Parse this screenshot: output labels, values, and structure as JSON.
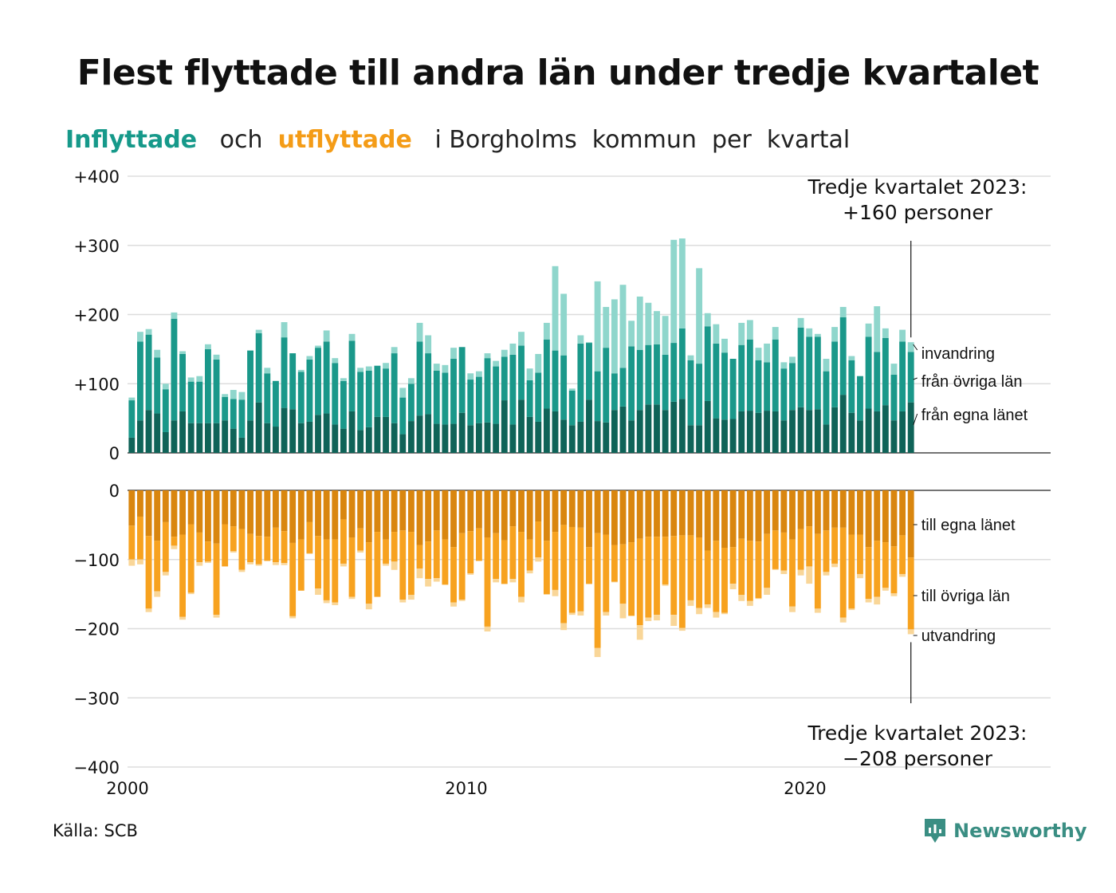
{
  "title": "Flest flyttade till andra län under tredje kvartalet",
  "subtitle": {
    "in_word": "Inflyttade",
    "and_word": "och",
    "out_word": "utflyttade",
    "rest": "i Borgholms  kommun  per  kvartal"
  },
  "source": "Källa: SCB",
  "brand": "Newsworthy",
  "colors": {
    "in_own": "#0f6358",
    "in_other": "#1a988a",
    "in_immigration": "#8fd6cc",
    "out_own": "#d9860f",
    "out_other": "#f7a21f",
    "out_emigration": "#f9d698",
    "brand": "#3a8e83"
  },
  "chart_data": {
    "type": "bar",
    "stacked": true,
    "x_start": 2000,
    "x_step": 0.25,
    "xlim": [
      2000,
      2027.25
    ],
    "x_ticks": [
      "2000",
      "2010",
      "2020"
    ],
    "y_ticks_top": [
      "+400",
      "+300",
      "+200",
      "+100",
      "0"
    ],
    "y_ticks_bottom": [
      "0",
      "−100",
      "−200",
      "−300",
      "−400"
    ],
    "ylim_top": [
      0,
      400
    ],
    "ylim_bottom": [
      -400,
      0
    ],
    "inflow": {
      "own_county": [
        22,
        47,
        62,
        57,
        30,
        47,
        60,
        43,
        43,
        43,
        43,
        47,
        35,
        22,
        47,
        73,
        43,
        38,
        65,
        63,
        43,
        45,
        55,
        57,
        41,
        35,
        60,
        33,
        37,
        52,
        52,
        43,
        27,
        46,
        54,
        56,
        42,
        41,
        42,
        58,
        40,
        43,
        44,
        42,
        76,
        41,
        77,
        52,
        45,
        64,
        60,
        48,
        40,
        45,
        77,
        46,
        44,
        62,
        67,
        47,
        62,
        70,
        70,
        62,
        74,
        78,
        40,
        40,
        75,
        50,
        48,
        49,
        60,
        61,
        58,
        61,
        60,
        47,
        62,
        66,
        62,
        63,
        41,
        66,
        84,
        58,
        47,
        64,
        60,
        69,
        47,
        60,
        73
      ],
      "from_other_counties": [
        54,
        114,
        109,
        81,
        62,
        147,
        83,
        60,
        60,
        107,
        92,
        34,
        43,
        55,
        101,
        100,
        72,
        66,
        102,
        81,
        74,
        90,
        97,
        104,
        89,
        69,
        102,
        84,
        82,
        74,
        70,
        101,
        53,
        54,
        107,
        88,
        77,
        75,
        94,
        95,
        66,
        67,
        93,
        83,
        63,
        101,
        78,
        53,
        71,
        100,
        88,
        93,
        50,
        113,
        82,
        72,
        108,
        53,
        56,
        107,
        87,
        86,
        87,
        80,
        85,
        102,
        94,
        89,
        108,
        108,
        97,
        87,
        96,
        103,
        76,
        70,
        104,
        75,
        68,
        115,
        106,
        105,
        77,
        95,
        112,
        76,
        64,
        104,
        86,
        97,
        66,
        101,
        73
      ],
      "immigration": [
        4,
        14,
        8,
        11,
        8,
        9,
        4,
        6,
        8,
        7,
        7,
        4,
        13,
        11,
        0,
        5,
        8,
        0,
        22,
        0,
        3,
        5,
        3,
        16,
        7,
        4,
        10,
        6,
        6,
        0,
        8,
        9,
        14,
        8,
        27,
        26,
        10,
        11,
        16,
        0,
        9,
        8,
        7,
        8,
        10,
        16,
        20,
        17,
        27,
        24,
        122,
        89,
        3,
        12,
        1,
        130,
        59,
        107,
        120,
        37,
        77,
        61,
        48,
        56,
        149,
        130,
        7,
        138,
        19,
        28,
        20,
        0,
        32,
        28,
        18,
        27,
        18,
        9,
        9,
        14,
        12,
        4,
        18,
        21,
        15,
        6,
        0,
        19,
        66,
        14,
        16,
        17,
        14
      ]
    },
    "outflow": {
      "own_county": [
        51,
        38,
        66,
        73,
        46,
        67,
        64,
        49,
        61,
        74,
        77,
        49,
        52,
        56,
        63,
        66,
        67,
        54,
        59,
        76,
        71,
        46,
        66,
        71,
        71,
        42,
        68,
        55,
        75,
        60,
        71,
        60,
        58,
        60,
        79,
        74,
        58,
        71,
        82,
        62,
        59,
        55,
        68,
        62,
        72,
        52,
        60,
        71,
        45,
        73,
        60,
        50,
        53,
        54,
        82,
        62,
        64,
        79,
        78,
        75,
        70,
        67,
        67,
        67,
        66,
        65,
        65,
        68,
        87,
        73,
        83,
        82,
        70,
        73,
        74,
        63,
        58,
        61,
        71,
        56,
        52,
        63,
        58,
        54,
        54,
        64,
        64,
        82,
        73,
        75,
        81,
        65,
        97
      ],
      "to_other_counties": [
        49,
        62,
        105,
        73,
        72,
        13,
        119,
        99,
        43,
        29,
        103,
        61,
        36,
        59,
        41,
        41,
        35,
        50,
        46,
        106,
        74,
        45,
        76,
        88,
        91,
        64,
        86,
        32,
        89,
        94,
        35,
        43,
        100,
        91,
        34,
        54,
        69,
        65,
        80,
        96,
        61,
        47,
        129,
        66,
        63,
        76,
        94,
        45,
        52,
        77,
        84,
        142,
        124,
        121,
        53,
        166,
        112,
        53,
        86,
        106,
        125,
        117,
        113,
        69,
        114,
        134,
        94,
        102,
        78,
        103,
        94,
        53,
        81,
        87,
        82,
        78,
        56,
        55,
        97,
        59,
        58,
        108,
        60,
        52,
        130,
        107,
        57,
        75,
        81,
        66,
        68,
        56,
        104
      ],
      "emigration": [
        9,
        7,
        5,
        8,
        5,
        5,
        4,
        2,
        5,
        2,
        4,
        0,
        2,
        3,
        3,
        2,
        0,
        4,
        3,
        3,
        0,
        1,
        9,
        4,
        4,
        4,
        3,
        3,
        8,
        0,
        3,
        12,
        4,
        7,
        14,
        11,
        5,
        1,
        6,
        2,
        2,
        0,
        7,
        5,
        1,
        5,
        8,
        4,
        6,
        1,
        9,
        10,
        3,
        6,
        1,
        13,
        5,
        1,
        21,
        1,
        21,
        5,
        8,
        2,
        16,
        4,
        8,
        9,
        5,
        8,
        2,
        8,
        9,
        7,
        1,
        10,
        1,
        5,
        8,
        8,
        25,
        6,
        5,
        5,
        7,
        2,
        6,
        5,
        11,
        4,
        4,
        4,
        7
      ]
    },
    "series_labels": {
      "inflow": [
        "invandring",
        "från övriga län",
        "från egna länet"
      ],
      "outflow": [
        "till egna länet",
        "till övriga län",
        "utvandring"
      ]
    },
    "annotation_top": [
      "Tredje kvartalet 2023:",
      "+160 personer"
    ],
    "annotation_bottom": [
      "Tredje kvartalet 2023:",
      "−208 personer"
    ]
  }
}
